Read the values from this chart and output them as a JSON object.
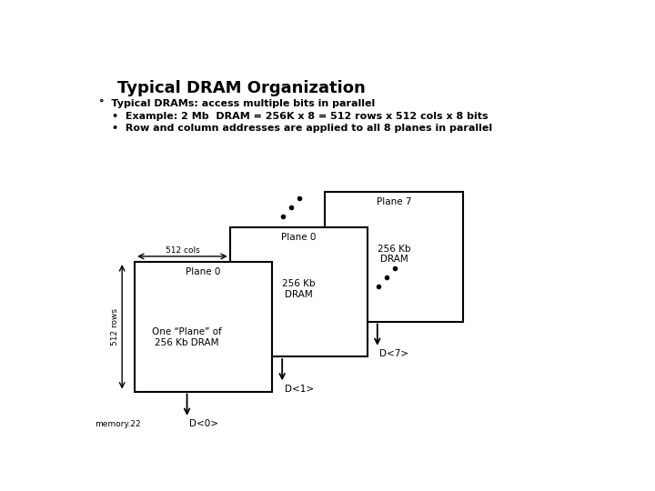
{
  "title": "Typical DRAM Organization",
  "bg_color": "#ffffff",
  "text_color": "#000000",
  "bullet1": "°  Typical DRAMs: access multiple bits in parallel",
  "bullet2": "•  Example: 2 Mb  DRAM = 256K x 8 = 512 rows x 512 cols x 8 bits",
  "bullet3": "•  Row and column addresses are applied to all 8 planes in parallel",
  "footer": "memory.22",
  "label_plane7": "Plane 7",
  "label_256kb_back": "256 Kb\nDRAM",
  "label_plane0_mid": "Plane 0",
  "label_256kb_mid": "256 Kb\nDRAM",
  "label_plane0_front": "Plane 0",
  "label_one_plane": "One “Plane” of\n256 Kb DRAM",
  "label_512cols": "512 cols",
  "label_512rows": "512 rows",
  "label_d7": "D<7>",
  "label_d1": "D<1>",
  "label_d0": "D<0>",
  "title_fontsize": 13,
  "body_fontsize": 8,
  "label_fontsize": 7.5
}
